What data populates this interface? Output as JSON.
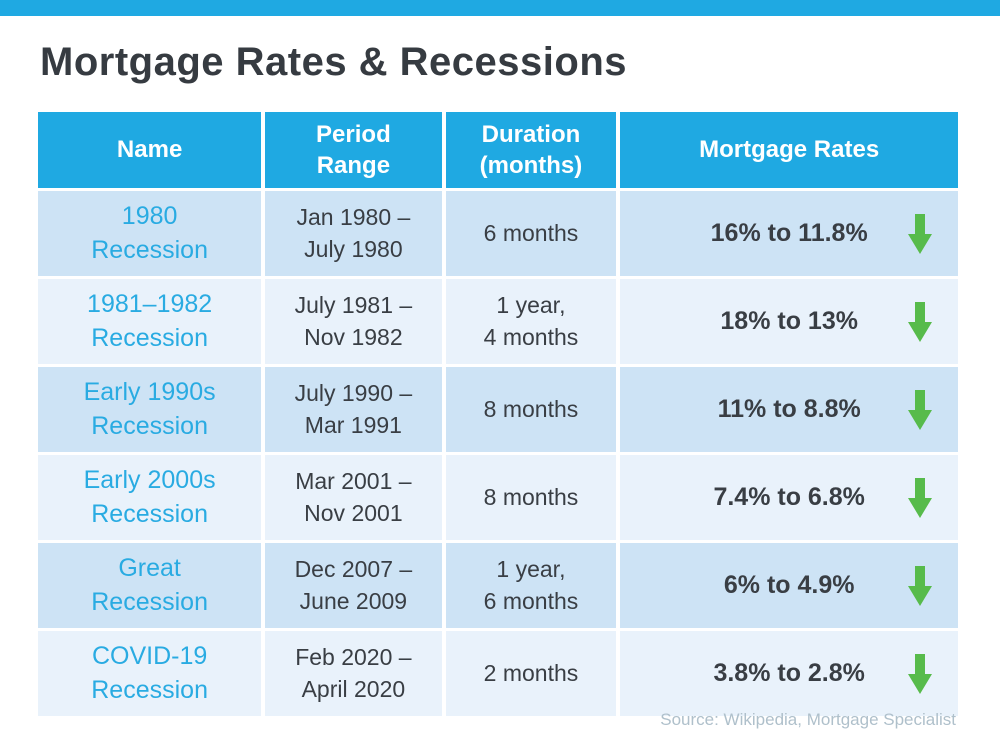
{
  "page": {
    "title": "Mortgage Rates & Recessions",
    "source": "Source: Wikipedia, Mortgage Specialist"
  },
  "colors": {
    "accent_blue": "#1FA9E2",
    "name_text_blue": "#29ABE2",
    "row_odd_bg": "#CDE3F5",
    "row_even_bg": "#E9F2FB",
    "arrow_green": "#57BB4B",
    "title_text": "#363B41",
    "body_text": "#393E44",
    "source_text": "#AFC0CB"
  },
  "icons": {
    "down_arrow": "down-arrow-icon"
  },
  "table": {
    "headers": {
      "name": "Name",
      "period": "Period\nRange",
      "duration": "Duration\n(months)",
      "rates": "Mortgage Rates"
    },
    "rows": [
      {
        "name": "1980\nRecession",
        "period": "Jan 1980 –\nJuly 1980",
        "duration": "6 months",
        "rates": "16% to 11.8%",
        "trend": "down"
      },
      {
        "name": "1981–1982\nRecession",
        "period": "July 1981 –\nNov 1982",
        "duration": "1 year,\n4 months",
        "rates": "18% to 13%",
        "trend": "down"
      },
      {
        "name": "Early 1990s\nRecession",
        "period": "July 1990 –\nMar 1991",
        "duration": "8 months",
        "rates": "11% to 8.8%",
        "trend": "down"
      },
      {
        "name": "Early 2000s\nRecession",
        "period": "Mar 2001 –\nNov 2001",
        "duration": "8 months",
        "rates": "7.4% to 6.8%",
        "trend": "down"
      },
      {
        "name": "Great\nRecession",
        "period": "Dec 2007 –\nJune 2009",
        "duration": "1 year,\n6 months",
        "rates": "6% to 4.9%",
        "trend": "down"
      },
      {
        "name": "COVID-19\nRecession",
        "period": "Feb 2020 –\nApril 2020",
        "duration": "2 months",
        "rates": "3.8% to 2.8%",
        "trend": "down"
      }
    ]
  },
  "chart_data": {
    "type": "table",
    "title": "Mortgage Rates & Recessions",
    "columns": [
      "Name",
      "Period Range",
      "Duration (months)",
      "Mortgage Rates"
    ],
    "rows": [
      [
        "1980 Recession",
        "Jan 1980 – July 1980",
        "6 months",
        "16% to 11.8% (down)"
      ],
      [
        "1981–1982 Recession",
        "July 1981 – Nov 1982",
        "1 year, 4 months",
        "18% to 13% (down)"
      ],
      [
        "Early 1990s Recession",
        "July 1990 – Mar 1991",
        "8 months",
        "11% to 8.8% (down)"
      ],
      [
        "Early 2000s Recession",
        "Mar 2001 – Nov 2001",
        "8 months",
        "7.4% to 6.8% (down)"
      ],
      [
        "Great Recession",
        "Dec 2007 – June 2009",
        "1 year, 6 months",
        "6% to 4.9% (down)"
      ],
      [
        "COVID-19 Recession",
        "Feb 2020 – April 2020",
        "2 months",
        "3.8% to 2.8% (down)"
      ]
    ],
    "rate_changes": [
      {
        "recession": "1980 Recession",
        "rate_start_pct": 16,
        "rate_end_pct": 11.8,
        "duration_months": 6
      },
      {
        "recession": "1981–1982 Recession",
        "rate_start_pct": 18,
        "rate_end_pct": 13,
        "duration_months": 16
      },
      {
        "recession": "Early 1990s Recession",
        "rate_start_pct": 11,
        "rate_end_pct": 8.8,
        "duration_months": 8
      },
      {
        "recession": "Early 2000s Recession",
        "rate_start_pct": 7.4,
        "rate_end_pct": 6.8,
        "duration_months": 8
      },
      {
        "recession": "Great Recession",
        "rate_start_pct": 6,
        "rate_end_pct": 4.9,
        "duration_months": 18
      },
      {
        "recession": "COVID-19 Recession",
        "rate_start_pct": 3.8,
        "rate_end_pct": 2.8,
        "duration_months": 2
      }
    ],
    "source": "Source: Wikipedia, Mortgage Specialist"
  }
}
